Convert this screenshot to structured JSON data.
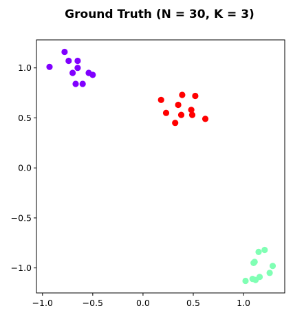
{
  "chart_data": {
    "type": "scatter",
    "title": "Ground Truth (N = 30, K = 3)",
    "xlabel": "",
    "ylabel": "",
    "xlim": [
      -1.06,
      1.41
    ],
    "ylim": [
      -1.25,
      1.28
    ],
    "grid": false,
    "x_ticks": [
      {
        "value": -1.0,
        "label": "−1.0"
      },
      {
        "value": -0.5,
        "label": "−0.5"
      },
      {
        "value": 0.0,
        "label": "0.0"
      },
      {
        "value": 0.5,
        "label": "0.5"
      },
      {
        "value": 1.0,
        "label": "1.0"
      }
    ],
    "y_ticks": [
      {
        "value": 1.0,
        "label": "1.0"
      },
      {
        "value": 0.5,
        "label": "0.5"
      },
      {
        "value": 0.0,
        "label": "0.0"
      },
      {
        "value": -0.5,
        "label": "−0.5"
      },
      {
        "value": -1.0,
        "label": "−1.0"
      }
    ],
    "series": [
      {
        "color": "#8000ff",
        "points": [
          [
            -0.93,
            1.01
          ],
          [
            -0.78,
            1.16
          ],
          [
            -0.74,
            1.07
          ],
          [
            -0.65,
            1.07
          ],
          [
            -0.65,
            1.0
          ],
          [
            -0.7,
            0.95
          ],
          [
            -0.67,
            0.84
          ],
          [
            -0.6,
            0.84
          ],
          [
            -0.54,
            0.95
          ],
          [
            -0.5,
            0.93
          ]
        ]
      },
      {
        "color": "#ff0000",
        "points": [
          [
            0.18,
            0.68
          ],
          [
            0.23,
            0.55
          ],
          [
            0.32,
            0.45
          ],
          [
            0.35,
            0.63
          ],
          [
            0.39,
            0.73
          ],
          [
            0.38,
            0.53
          ],
          [
            0.48,
            0.58
          ],
          [
            0.49,
            0.53
          ],
          [
            0.52,
            0.72
          ],
          [
            0.62,
            0.49
          ]
        ]
      },
      {
        "color": "#80ffb4",
        "points": [
          [
            1.02,
            -1.13
          ],
          [
            1.09,
            -1.11
          ],
          [
            1.12,
            -1.12
          ],
          [
            1.16,
            -1.09
          ],
          [
            1.1,
            -0.95
          ],
          [
            1.11,
            -0.94
          ],
          [
            1.15,
            -0.84
          ],
          [
            1.21,
            -0.82
          ],
          [
            1.26,
            -1.05
          ],
          [
            1.29,
            -0.98
          ]
        ]
      }
    ]
  }
}
